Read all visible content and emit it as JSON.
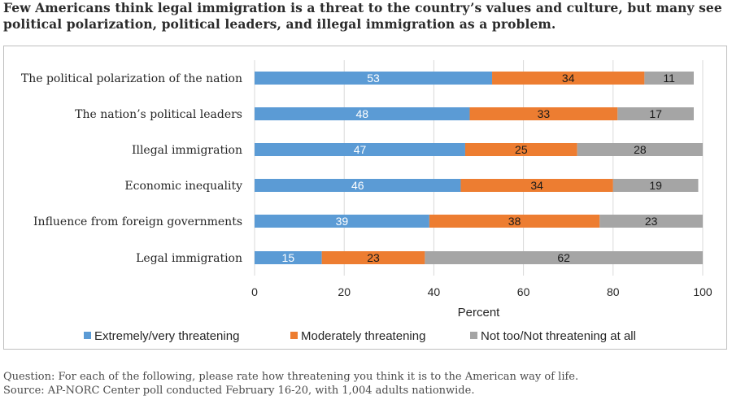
{
  "title": "Few Americans think legal immigration is a threat to the country’s values and culture, but many see political polarization, political leaders, and illegal immigration as a problem.",
  "footer": {
    "question": "Question: For each of the following, please rate how threatening you think it is to the American way of life.",
    "source": "Source: AP-NORC Center poll conducted February 16-20, with 1,004 adults nationwide."
  },
  "colors": {
    "series1": "#5b9bd5",
    "series2": "#ed7d31",
    "series3": "#a5a5a5",
    "gridline": "#d9d9d9",
    "text": "#262626"
  },
  "chart_data": {
    "type": "bar",
    "orientation": "horizontal",
    "stacked": true,
    "categories": [
      "The political polarization of the nation",
      "The nation’s political leaders",
      "Illegal immigration",
      "Economic inequality",
      "Influence from foreign governments",
      "Legal immigration"
    ],
    "series": [
      {
        "name": "Extremely/very threatening",
        "values": [
          53,
          48,
          47,
          46,
          39,
          15
        ]
      },
      {
        "name": "Moderately threatening",
        "values": [
          34,
          33,
          25,
          34,
          38,
          23
        ]
      },
      {
        "name": "Not too/Not threatening at all",
        "values": [
          11,
          17,
          28,
          19,
          23,
          62
        ]
      }
    ],
    "xlabel": "Percent",
    "xlim": [
      0,
      100
    ],
    "xticks": [
      0,
      20,
      40,
      60,
      80,
      100
    ],
    "grid": true,
    "legend_position": "bottom"
  }
}
